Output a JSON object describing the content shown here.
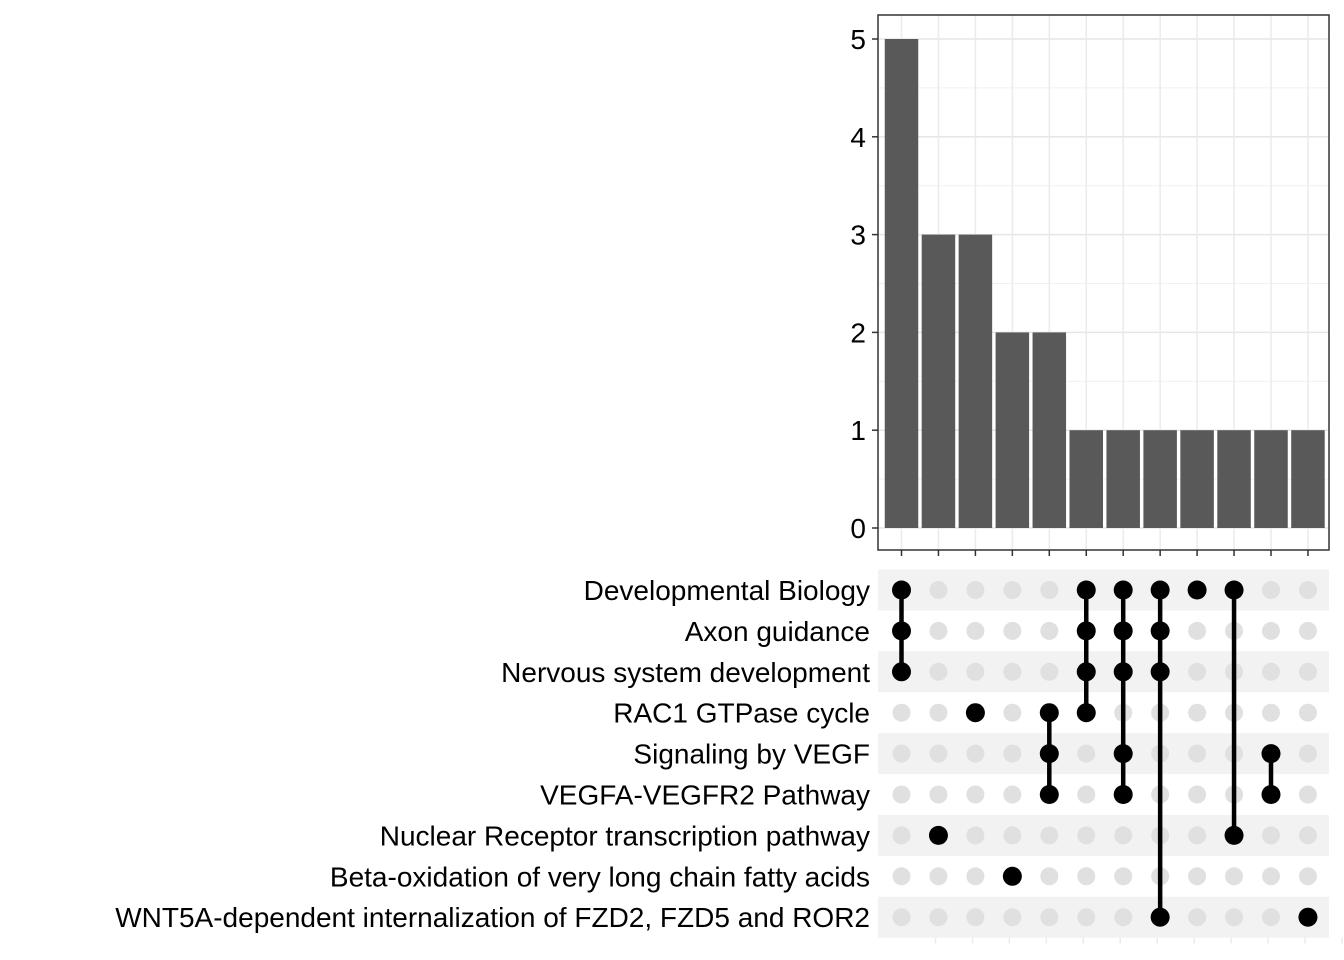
{
  "chart_data": {
    "type": "bar",
    "subtype": "upset",
    "y_ticks": [
      "0",
      "1",
      "2",
      "3",
      "4",
      "5"
    ],
    "ylim": [
      0,
      5.25
    ],
    "grid": true,
    "bar_color": "#595959",
    "dot_active_color": "#000000",
    "dot_inactive_color": "#e0e0e0",
    "stripe_color": "#f2f2f2",
    "sets": [
      "Developmental Biology",
      "Axon guidance",
      "Nervous system development",
      "RAC1 GTPase cycle",
      "Signaling by VEGF",
      "VEGFA-VEGFR2 Pathway",
      "Nuclear Receptor transcription pathway",
      "Beta-oxidation of very long chain fatty acids",
      "WNT5A-dependent internalization of FZD2, FZD5 and ROR2"
    ],
    "values": [
      5,
      3,
      3,
      2,
      2,
      1,
      1,
      1,
      1,
      1,
      1,
      1
    ],
    "intersections": [
      [
        "Developmental Biology",
        "Axon guidance",
        "Nervous system development"
      ],
      [
        "Nuclear Receptor transcription pathway"
      ],
      [
        "RAC1 GTPase cycle"
      ],
      [
        "Beta-oxidation of very long chain fatty acids"
      ],
      [
        "RAC1 GTPase cycle",
        "Signaling by VEGF",
        "VEGFA-VEGFR2 Pathway"
      ],
      [
        "Developmental Biology",
        "Axon guidance",
        "Nervous system development",
        "RAC1 GTPase cycle"
      ],
      [
        "Developmental Biology",
        "Axon guidance",
        "Nervous system development",
        "Signaling by VEGF",
        "VEGFA-VEGFR2 Pathway"
      ],
      [
        "Developmental Biology",
        "Axon guidance",
        "Nervous system development",
        "WNT5A-dependent internalization of FZD2, FZD5 and ROR2"
      ],
      [
        "Developmental Biology"
      ],
      [
        "Developmental Biology",
        "Nuclear Receptor transcription pathway"
      ],
      [
        "Signaling by VEGF",
        "VEGFA-VEGFR2 Pathway"
      ],
      [
        "WNT5A-dependent internalization of FZD2, FZD5 and ROR2"
      ]
    ]
  }
}
